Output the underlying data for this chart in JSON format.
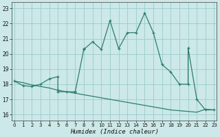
{
  "xlabel": "Humidex (Indice chaleur)",
  "bg_color": "#cce8e8",
  "line_color": "#2d7d6e",
  "grid_color": "#99cccc",
  "x_ticks": [
    0,
    1,
    2,
    3,
    4,
    5,
    6,
    7,
    8,
    9,
    10,
    11,
    12,
    13,
    14,
    15,
    16,
    17,
    18,
    19,
    20,
    21,
    22,
    23
  ],
  "y_ticks": [
    16,
    17,
    18,
    19,
    20,
    21,
    22,
    23
  ],
  "xlim": [
    -0.3,
    23.3
  ],
  "ylim": [
    15.6,
    23.4
  ],
  "curve1_x": [
    0,
    1,
    2,
    3,
    4,
    5,
    5,
    5,
    6,
    7,
    7,
    7,
    8,
    8,
    9,
    10,
    11,
    12,
    13,
    14,
    15,
    16,
    17,
    18,
    19,
    20,
    20,
    21,
    22,
    23
  ],
  "curve1_y": [
    18.2,
    17.9,
    17.85,
    18.0,
    18.35,
    18.5,
    17.65,
    17.5,
    17.5,
    17.5,
    17.5,
    17.5,
    20.35,
    20.3,
    20.8,
    20.3,
    22.2,
    20.35,
    21.4,
    21.4,
    22.7,
    21.4,
    19.3,
    18.8,
    18.0,
    18.0,
    20.4,
    17.0,
    16.3,
    16.3
  ],
  "curve2_x": [
    0,
    1,
    2,
    3,
    4,
    5,
    6,
    7,
    8,
    9,
    10,
    11,
    12,
    13,
    14,
    15,
    16,
    17,
    18,
    19,
    20,
    21,
    22,
    23
  ],
  "curve2_y": [
    18.2,
    18.1,
    17.95,
    17.85,
    17.75,
    17.6,
    17.5,
    17.4,
    17.3,
    17.2,
    17.1,
    17.0,
    16.9,
    16.8,
    16.7,
    16.6,
    16.5,
    16.4,
    16.3,
    16.25,
    16.2,
    16.15,
    16.35,
    16.3
  ]
}
